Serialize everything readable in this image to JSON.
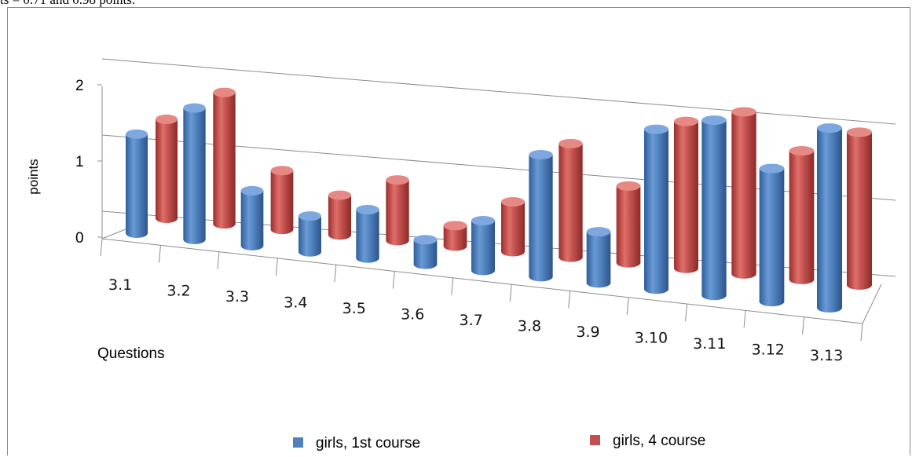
{
  "header_text": "ts = 0.71 and 0.98 points.",
  "chart_data": {
    "type": "bar",
    "title": "",
    "xlabel": "Questions",
    "ylabel": "points",
    "ylim": [
      0,
      2
    ],
    "yticks": [
      "0",
      "1",
      "2"
    ],
    "grid": true,
    "legend_position": "bottom",
    "categories": [
      "3.1",
      "3.2",
      "3.3",
      "3.4",
      "3.5",
      "3.6",
      "3.7",
      "3.8",
      "3.9",
      "3.10",
      "3.11",
      "3.12",
      "3.13"
    ],
    "series": [
      {
        "name": "girls, 1st course",
        "color": "#4f81bd",
        "values": [
          1.3,
          1.7,
          0.7,
          0.45,
          0.6,
          0.3,
          0.6,
          1.45,
          0.6,
          1.85,
          2.0,
          1.5,
          2.0
        ]
      },
      {
        "name": "girls, 4 course",
        "color": "#c0504d",
        "values": [
          1.3,
          1.7,
          0.75,
          0.5,
          0.75,
          0.25,
          0.6,
          1.35,
          0.9,
          1.7,
          1.85,
          1.45,
          1.7
        ]
      }
    ]
  }
}
